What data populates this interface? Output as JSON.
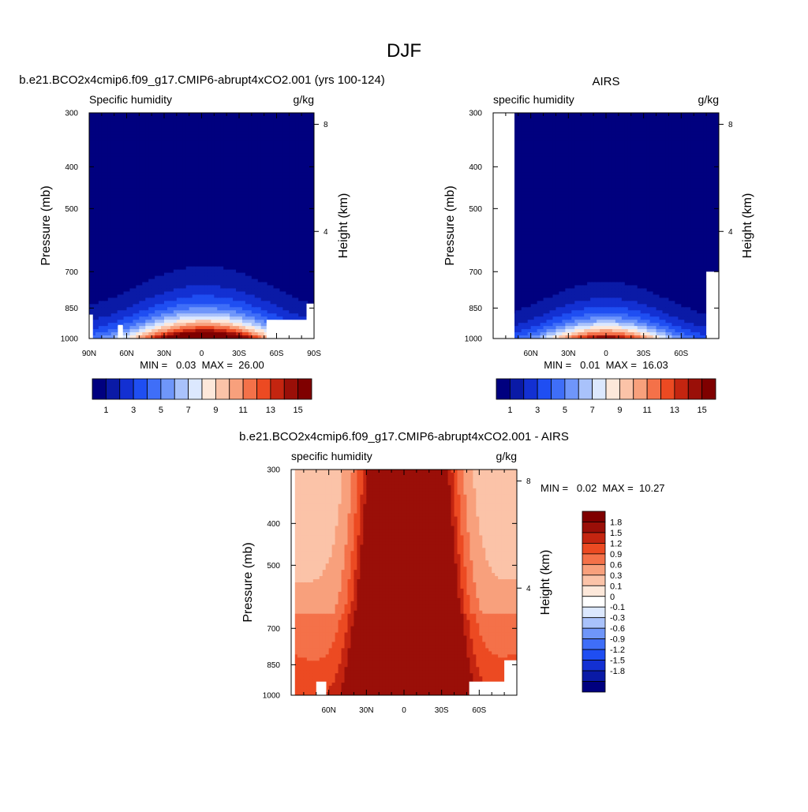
{
  "page": {
    "title": "DJF"
  },
  "palettes": {
    "absolute": [
      "#00007f",
      "#0a1aa6",
      "#1330d2",
      "#1f4ef2",
      "#3f6ef8",
      "#6f96fa",
      "#a9c2fb",
      "#dce8fe",
      "#fde8da",
      "#fbc3a8",
      "#f8a07c",
      "#f47149",
      "#ec4a22",
      "#c42510",
      "#9a0f08",
      "#7f0000"
    ],
    "difference": [
      "#00007f",
      "#0a1aa6",
      "#1330d2",
      "#1f4ef2",
      "#3f6ef8",
      "#6f96fa",
      "#a9c2fb",
      "#dce8fe",
      "#ffffff",
      "#fde8da",
      "#fbc3a8",
      "#f8a07c",
      "#f47149",
      "#ec4a22",
      "#c42510",
      "#9a0f08",
      "#7f0000"
    ]
  },
  "chart_data": [
    {
      "type": "heatmap",
      "title": "b.e21.BCO2x4cmip6.f09_g17.CMIP6-abrupt4xCO2.001 (yrs 100-124)",
      "left_label": "Specific humidity",
      "right_label": "g/kg",
      "ylabel": "Pressure (mb)",
      "ylabel_right": "Height (km)",
      "x_ticks": [
        "90N",
        "60N",
        "30N",
        "0",
        "30S",
        "60S",
        "90S"
      ],
      "x_range": [
        90,
        -90
      ],
      "y_ticks": [
        "300",
        "400",
        "500",
        "700",
        "850",
        "1000"
      ],
      "y_range": [
        1000,
        300
      ],
      "log_pressure": true,
      "height_ticks": [
        "8",
        "4"
      ],
      "stats": "MIN =   0.03  MAX =  26.00",
      "colorbar_labels": [
        "1",
        "3",
        "5",
        "7",
        "9",
        "11",
        "13",
        "15"
      ],
      "levels": [
        1,
        2,
        3,
        4,
        5,
        6,
        7,
        8,
        9,
        10,
        11,
        12,
        13,
        14,
        15
      ],
      "field": {
        "surface": 21,
        "scale_height_mb": 105,
        "center_lat": 2,
        "width_deg": 38,
        "mask": [
          [
            -90,
            -87,
            880,
            1000
          ],
          [
            -67,
            -63,
            930,
            1000
          ],
          [
            52,
            90,
            905,
            1000
          ],
          [
            84,
            90,
            830,
            1000
          ]
        ]
      }
    },
    {
      "type": "heatmap",
      "title": "AIRS",
      "left_label": "specific humidity",
      "right_label": "g/kg",
      "ylabel": "Pressure (mb)",
      "ylabel_right": "Height (km)",
      "x_ticks": [
        "60N",
        "30N",
        "0",
        "30S",
        "60S"
      ],
      "x_range": [
        90,
        -90
      ],
      "y_ticks": [
        "300",
        "400",
        "500",
        "700",
        "850",
        "1000"
      ],
      "y_range": [
        1000,
        300
      ],
      "log_pressure": true,
      "height_ticks": [
        "8",
        "4"
      ],
      "stats": "MIN =   0.01  MAX =  16.03",
      "colorbar_labels": [
        "1",
        "3",
        "5",
        "7",
        "9",
        "11",
        "13",
        "15"
      ],
      "levels": [
        1,
        2,
        3,
        4,
        5,
        6,
        7,
        8,
        9,
        10,
        11,
        12,
        13,
        14,
        15
      ],
      "field": {
        "surface": 15.5,
        "scale_height_mb": 95,
        "center_lat": 0,
        "width_deg": 34,
        "mask": [
          [
            -90,
            -73,
            300,
            1000
          ],
          [
            80,
            90,
            700,
            1000
          ],
          [
            82,
            90,
            850,
            1000
          ]
        ]
      }
    },
    {
      "type": "heatmap",
      "title": "b.e21.BCO2x4cmip6.f09_g17.CMIP6-abrupt4xCO2.001 - AIRS",
      "left_label": "specific humidity",
      "right_label": "g/kg",
      "ylabel": "Pressure (mb)",
      "ylabel_right": "Height (km)",
      "x_ticks": [
        "60N",
        "30N",
        "0",
        "30S",
        "60S"
      ],
      "x_range": [
        90,
        -90
      ],
      "y_ticks": [
        "300",
        "400",
        "500",
        "700",
        "850",
        "1000"
      ],
      "y_range": [
        1000,
        300
      ],
      "log_pressure": true,
      "height_ticks": [
        "8",
        "4"
      ],
      "stats": "MIN =   0.02  MAX =  10.27",
      "colorbar_labels": [
        "1.8",
        "1.5",
        "1.2",
        "0.9",
        "0.6",
        "0.3",
        "0.1",
        "0",
        "-0.1",
        "-0.3",
        "-0.6",
        "-0.9",
        "-1.2",
        "-1.5",
        "-1.8"
      ],
      "levels": [
        -1.8,
        -1.5,
        -1.2,
        -0.9,
        -0.6,
        -0.3,
        -0.1,
        0,
        0.1,
        0.3,
        0.6,
        0.9,
        1.2,
        1.5,
        1.8
      ],
      "field": {
        "base": 0.12,
        "peak": 9,
        "center_lat": 3,
        "width_deg": 22,
        "mask": [
          [
            -90,
            -87,
            300,
            1000
          ],
          [
            -70,
            -62,
            930,
            1000
          ],
          [
            52,
            90,
            930,
            1000
          ],
          [
            80,
            90,
            830,
            1000
          ]
        ]
      }
    }
  ]
}
